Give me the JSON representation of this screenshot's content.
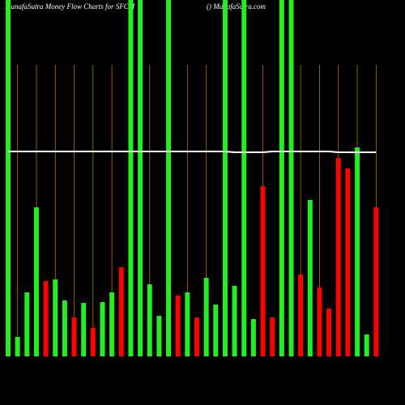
{
  "chart_data": {
    "type": "bar",
    "title": "MunafaSutra  Money Flow  Charts for SFCM",
    "subtitle": "() MunafaSutra.com",
    "ylim": [
      0,
      440
    ],
    "values": [
      440,
      24,
      79,
      184,
      93,
      95,
      69,
      48,
      66,
      35,
      67,
      79,
      110,
      440,
      440,
      89,
      50,
      440,
      75,
      79,
      48,
      97,
      64,
      440,
      87,
      440,
      46,
      210,
      48,
      440,
      440,
      101,
      193,
      85,
      59,
      245,
      232,
      258,
      27,
      184
    ],
    "colors": [
      "#22ee22",
      "#22ee22",
      "#22ee22",
      "#22ee22",
      "#ff0000",
      "#22ee22",
      "#22ee22",
      "#ff0000",
      "#22ee22",
      "#ff0000",
      "#22ee22",
      "#22ee22",
      "#ff0000",
      "#22ee22",
      "#22ee22",
      "#22ee22",
      "#22ee22",
      "#22ee22",
      "#ff0000",
      "#22ee22",
      "#ff0000",
      "#22ee22",
      "#22ee22",
      "#22ee22",
      "#22ee22",
      "#22ee22",
      "#22ee22",
      "#ff0000",
      "#ff0000",
      "#22ee22",
      "#22ee22",
      "#ff0000",
      "#22ee22",
      "#ff0000",
      "#ff0000",
      "#ff0000",
      "#ff0000",
      "#22ee22",
      "#22ee22",
      "#ff0000"
    ],
    "line": {
      "color": "#ffffff",
      "values": [
        253,
        253,
        253,
        253,
        253,
        253,
        253,
        253,
        253,
        253,
        253,
        253,
        253,
        253,
        253,
        253,
        253,
        253,
        253,
        253,
        253,
        253,
        253,
        253,
        252,
        252,
        252,
        252,
        253,
        253,
        253,
        253,
        253,
        253,
        253,
        252,
        252,
        252,
        252,
        252
      ]
    },
    "grid_color": "#b8700a"
  }
}
